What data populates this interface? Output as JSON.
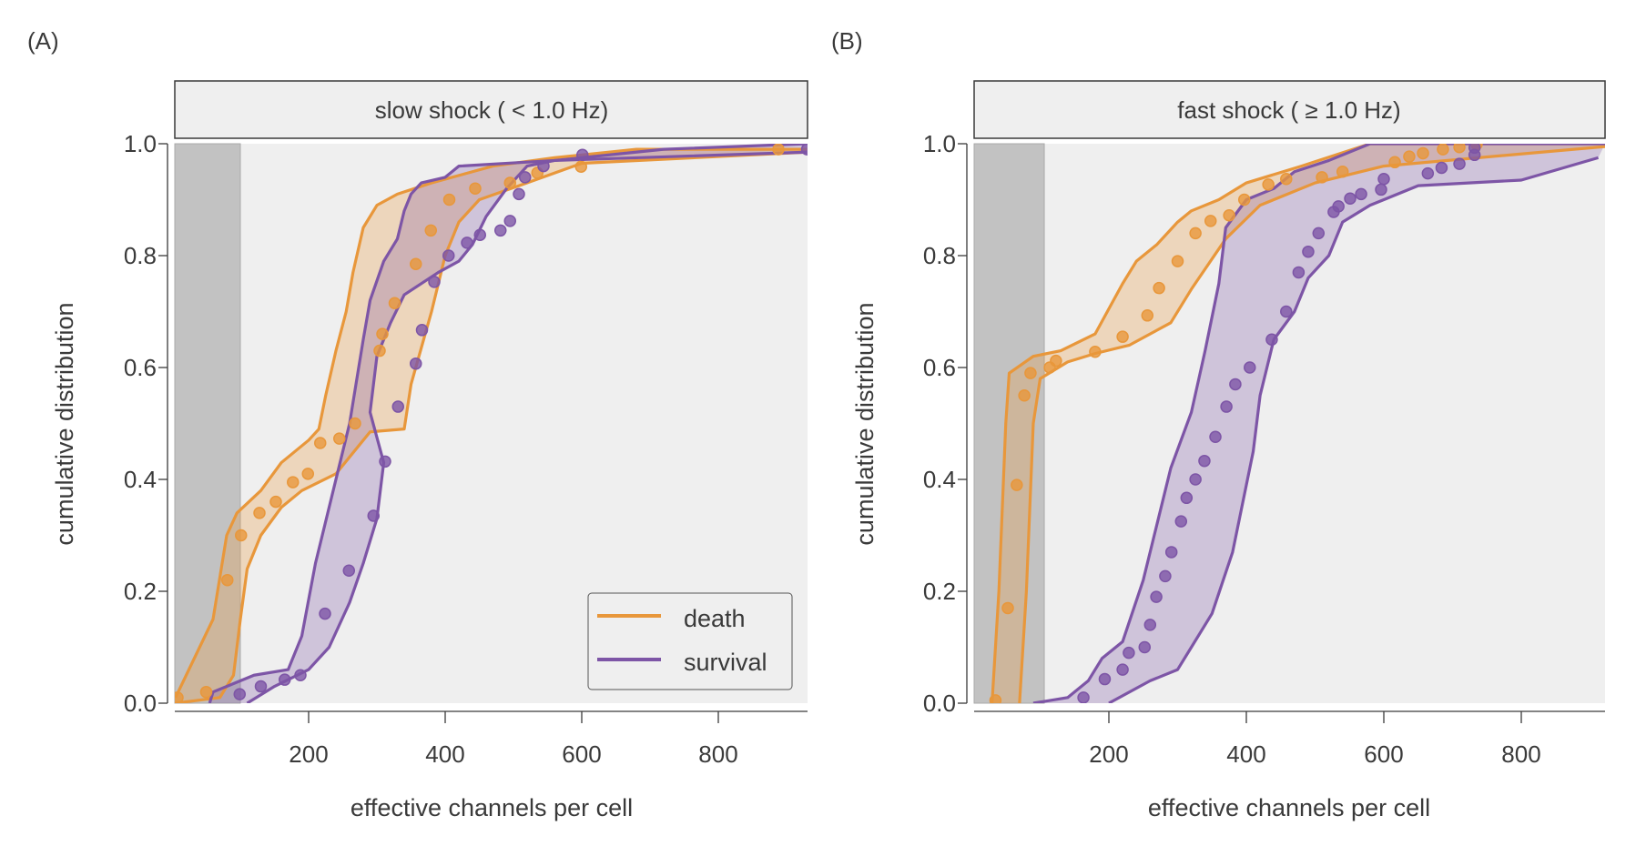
{
  "colors": {
    "death": "#e8973b",
    "survival": "#7d55a6",
    "panel_bg": "#efefef",
    "strip_bg": "#efefef",
    "shade": "#c2c2c2",
    "text": "#3a3a3a"
  },
  "legend": {
    "position": "bottom-right of panel A",
    "items": [
      {
        "key": "death",
        "label": "death"
      },
      {
        "key": "survival",
        "label": "survival"
      }
    ]
  },
  "chart_data": [
    {
      "type": "line",
      "panel_label": "(A)",
      "title": "slow shock ( <  1.0 Hz)",
      "xlabel": "effective channels per cell",
      "ylabel": "cumulative distribution",
      "xlim": [
        4,
        930
      ],
      "ylim": [
        0,
        1
      ],
      "xticks": [
        200,
        400,
        600,
        800
      ],
      "yticks": [
        0.0,
        0.2,
        0.4,
        0.6,
        0.8,
        1.0
      ],
      "ytick_labels": [
        "0.0",
        "0.2",
        "0.4",
        "0.6",
        "0.8",
        "1.0"
      ],
      "shaded_region": {
        "x": [
          0,
          100
        ]
      },
      "series": [
        {
          "name": "death",
          "points": [
            [
              8,
              0.01
            ],
            [
              50,
              0.02
            ],
            [
              81,
              0.22
            ],
            [
              101,
              0.3
            ],
            [
              128,
              0.34
            ],
            [
              152,
              0.36
            ],
            [
              177,
              0.395
            ],
            [
              199,
              0.41
            ],
            [
              217,
              0.465
            ],
            [
              245,
              0.473
            ],
            [
              268,
              0.5
            ],
            [
              304,
              0.63
            ],
            [
              308,
              0.66
            ],
            [
              326,
              0.715
            ],
            [
              357,
              0.785
            ],
            [
              379,
              0.845
            ],
            [
              406,
              0.9
            ],
            [
              444,
              0.92
            ],
            [
              495,
              0.93
            ],
            [
              535,
              0.948
            ],
            [
              599,
              0.959
            ],
            [
              888,
              0.99
            ]
          ],
          "band_upper": [
            [
              5,
              0.01
            ],
            [
              60,
              0.15
            ],
            [
              80,
              0.3
            ],
            [
              95,
              0.34
            ],
            [
              130,
              0.38
            ],
            [
              160,
              0.43
            ],
            [
              200,
              0.47
            ],
            [
              215,
              0.49
            ],
            [
              225,
              0.55
            ],
            [
              240,
              0.63
            ],
            [
              255,
              0.7
            ],
            [
              265,
              0.77
            ],
            [
              280,
              0.85
            ],
            [
              300,
              0.89
            ],
            [
              330,
              0.91
            ],
            [
              380,
              0.93
            ],
            [
              470,
              0.96
            ],
            [
              560,
              0.975
            ],
            [
              680,
              0.99
            ],
            [
              930,
              0.99
            ]
          ],
          "band_lower": [
            [
              5,
              0.0
            ],
            [
              70,
              0.01
            ],
            [
              90,
              0.05
            ],
            [
              100,
              0.15
            ],
            [
              110,
              0.24
            ],
            [
              130,
              0.3
            ],
            [
              160,
              0.35
            ],
            [
              190,
              0.38
            ],
            [
              240,
              0.41
            ],
            [
              290,
              0.485
            ],
            [
              340,
              0.49
            ],
            [
              350,
              0.57
            ],
            [
              380,
              0.7
            ],
            [
              400,
              0.8
            ],
            [
              420,
              0.86
            ],
            [
              450,
              0.9
            ],
            [
              520,
              0.93
            ],
            [
              600,
              0.965
            ],
            [
              930,
              0.985
            ]
          ]
        },
        {
          "name": "survival",
          "points": [
            [
              99,
              0.016
            ],
            [
              130,
              0.03
            ],
            [
              165,
              0.042
            ],
            [
              188,
              0.05
            ],
            [
              224,
              0.16
            ],
            [
              259,
              0.237
            ],
            [
              295,
              0.335
            ],
            [
              312,
              0.432
            ],
            [
              331,
              0.53
            ],
            [
              357,
              0.607
            ],
            [
              366,
              0.667
            ],
            [
              384,
              0.753
            ],
            [
              405,
              0.8
            ],
            [
              432,
              0.823
            ],
            [
              451,
              0.837
            ],
            [
              481,
              0.845
            ],
            [
              495,
              0.862
            ],
            [
              508,
              0.91
            ],
            [
              517,
              0.94
            ],
            [
              544,
              0.96
            ],
            [
              601,
              0.98
            ],
            [
              930,
              0.99
            ]
          ],
          "band_upper": [
            [
              55,
              0.0
            ],
            [
              60,
              0.02
            ],
            [
              120,
              0.05
            ],
            [
              170,
              0.06
            ],
            [
              190,
              0.12
            ],
            [
              210,
              0.25
            ],
            [
              240,
              0.4
            ],
            [
              260,
              0.5
            ],
            [
              280,
              0.65
            ],
            [
              290,
              0.72
            ],
            [
              310,
              0.79
            ],
            [
              330,
              0.83
            ],
            [
              340,
              0.88
            ],
            [
              350,
              0.91
            ],
            [
              365,
              0.93
            ],
            [
              400,
              0.94
            ],
            [
              420,
              0.96
            ],
            [
              560,
              0.97
            ],
            [
              720,
              0.99
            ],
            [
              930,
              1.0
            ]
          ],
          "band_lower": [
            [
              110,
              0.0
            ],
            [
              150,
              0.03
            ],
            [
              200,
              0.06
            ],
            [
              230,
              0.1
            ],
            [
              260,
              0.18
            ],
            [
              280,
              0.25
            ],
            [
              300,
              0.33
            ],
            [
              310,
              0.43
            ],
            [
              290,
              0.52
            ],
            [
              300,
              0.62
            ],
            [
              320,
              0.68
            ],
            [
              340,
              0.73
            ],
            [
              390,
              0.77
            ],
            [
              420,
              0.79
            ],
            [
              440,
              0.82
            ],
            [
              460,
              0.87
            ],
            [
              490,
              0.92
            ],
            [
              520,
              0.96
            ],
            [
              560,
              0.97
            ],
            [
              930,
              0.985
            ]
          ]
        }
      ]
    },
    {
      "type": "line",
      "panel_label": "(B)",
      "title": "fast shock ( ≥  1.0 Hz)",
      "xlabel": "effective channels per cell",
      "ylabel": "cumulative distribution",
      "xlim": [
        4,
        922
      ],
      "ylim": [
        0,
        1
      ],
      "xticks": [
        200,
        400,
        600,
        800
      ],
      "yticks": [
        0.0,
        0.2,
        0.4,
        0.6,
        0.8,
        1.0
      ],
      "ytick_labels": [
        "0.0",
        "0.2",
        "0.4",
        "0.6",
        "0.8",
        "1.0"
      ],
      "shaded_region": {
        "x": [
          0,
          106
        ]
      },
      "series": [
        {
          "name": "death",
          "points": [
            [
              35,
              0.005
            ],
            [
              53,
              0.17
            ],
            [
              66,
              0.39
            ],
            [
              77,
              0.55
            ],
            [
              86,
              0.59
            ],
            [
              114,
              0.6
            ],
            [
              123,
              0.612
            ],
            [
              180,
              0.628
            ],
            [
              220,
              0.655
            ],
            [
              256,
              0.693
            ],
            [
              273,
              0.742
            ],
            [
              300,
              0.79
            ],
            [
              326,
              0.84
            ],
            [
              348,
              0.862
            ],
            [
              375,
              0.872
            ],
            [
              397,
              0.9
            ],
            [
              432,
              0.927
            ],
            [
              458,
              0.937
            ],
            [
              510,
              0.94
            ],
            [
              540,
              0.95
            ],
            [
              616,
              0.967
            ],
            [
              637,
              0.977
            ],
            [
              657,
              0.983
            ],
            [
              686,
              0.99
            ],
            [
              710,
              0.994
            ],
            [
              735,
              0.999
            ]
          ],
          "band_upper": [
            [
              30,
              0.0
            ],
            [
              40,
              0.2
            ],
            [
              50,
              0.5
            ],
            [
              55,
              0.59
            ],
            [
              90,
              0.62
            ],
            [
              130,
              0.63
            ],
            [
              180,
              0.66
            ],
            [
              220,
              0.75
            ],
            [
              240,
              0.79
            ],
            [
              270,
              0.82
            ],
            [
              300,
              0.86
            ],
            [
              320,
              0.88
            ],
            [
              360,
              0.9
            ],
            [
              400,
              0.93
            ],
            [
              480,
              0.96
            ],
            [
              580,
              1.0
            ],
            [
              922,
              1.0
            ]
          ],
          "band_lower": [
            [
              70,
              0.0
            ],
            [
              80,
              0.2
            ],
            [
              90,
              0.5
            ],
            [
              100,
              0.58
            ],
            [
              140,
              0.61
            ],
            [
              180,
              0.625
            ],
            [
              230,
              0.64
            ],
            [
              290,
              0.68
            ],
            [
              320,
              0.74
            ],
            [
              370,
              0.83
            ],
            [
              420,
              0.89
            ],
            [
              500,
              0.93
            ],
            [
              600,
              0.96
            ],
            [
              922,
              0.995
            ]
          ]
        },
        {
          "name": "survival",
          "points": [
            [
              163,
              0.01
            ],
            [
              194,
              0.043
            ],
            [
              220,
              0.06
            ],
            [
              229,
              0.09
            ],
            [
              252,
              0.1
            ],
            [
              260,
              0.14
            ],
            [
              269,
              0.19
            ],
            [
              282,
              0.227
            ],
            [
              291,
              0.27
            ],
            [
              305,
              0.325
            ],
            [
              313,
              0.367
            ],
            [
              326,
              0.4
            ],
            [
              339,
              0.433
            ],
            [
              355,
              0.476
            ],
            [
              371,
              0.53
            ],
            [
              384,
              0.57
            ],
            [
              405,
              0.6
            ],
            [
              437,
              0.65
            ],
            [
              458,
              0.7
            ],
            [
              476,
              0.77
            ],
            [
              490,
              0.807
            ],
            [
              505,
              0.84
            ],
            [
              527,
              0.878
            ],
            [
              534,
              0.888
            ],
            [
              551,
              0.902
            ],
            [
              567,
              0.91
            ],
            [
              596,
              0.918
            ],
            [
              600,
              0.937
            ],
            [
              664,
              0.947
            ],
            [
              684,
              0.957
            ],
            [
              710,
              0.964
            ],
            [
              732,
              0.98
            ],
            [
              732,
              0.993
            ]
          ],
          "band_upper": [
            [
              90,
              0.0
            ],
            [
              140,
              0.01
            ],
            [
              170,
              0.04
            ],
            [
              190,
              0.08
            ],
            [
              220,
              0.11
            ],
            [
              250,
              0.22
            ],
            [
              270,
              0.32
            ],
            [
              290,
              0.42
            ],
            [
              320,
              0.52
            ],
            [
              340,
              0.63
            ],
            [
              360,
              0.75
            ],
            [
              370,
              0.85
            ],
            [
              400,
              0.9
            ],
            [
              440,
              0.92
            ],
            [
              470,
              0.95
            ],
            [
              520,
              0.97
            ],
            [
              580,
              1.0
            ],
            [
              922,
              1.0
            ]
          ],
          "band_lower": [
            [
              200,
              0.0
            ],
            [
              260,
              0.04
            ],
            [
              300,
              0.06
            ],
            [
              320,
              0.1
            ],
            [
              350,
              0.16
            ],
            [
              380,
              0.27
            ],
            [
              390,
              0.33
            ],
            [
              410,
              0.45
            ],
            [
              420,
              0.55
            ],
            [
              440,
              0.65
            ],
            [
              470,
              0.7
            ],
            [
              490,
              0.76
            ],
            [
              520,
              0.8
            ],
            [
              540,
              0.86
            ],
            [
              580,
              0.89
            ],
            [
              650,
              0.925
            ],
            [
              800,
              0.935
            ],
            [
              912,
              0.975
            ]
          ]
        }
      ]
    }
  ]
}
